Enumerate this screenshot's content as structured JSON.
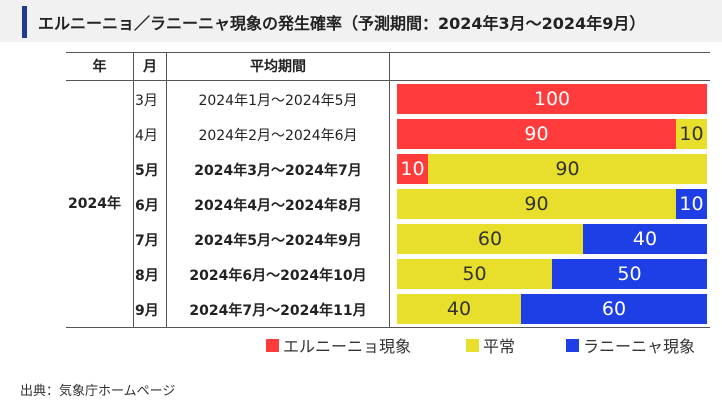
{
  "title": "エルニーニョ／ラニーニャ現象の発生確率（予測期間：2024年3月〜2024年9月）",
  "table_headers": {
    "year": "年",
    "month": "月",
    "period": "平均期間"
  },
  "year_label": "2024年",
  "colors": {
    "elnino": "#ff3b3b",
    "normal": "#e8df2c",
    "lanina": "#1f3fe6"
  },
  "chart_data": {
    "type": "bar",
    "stacked": true,
    "orientation": "horizontal",
    "title": "エルニーニョ／ラニーニャ現象の発生確率（予測期間：2024年3月〜2024年9月）",
    "categories": [
      "3月",
      "4月",
      "5月",
      "6月",
      "7月",
      "8月",
      "9月"
    ],
    "periods": [
      "2024年1月〜2024年5月",
      "2024年2月〜2024年6月",
      "2024年3月〜2024年7月",
      "2024年4月〜2024年8月",
      "2024年5月〜2024年9月",
      "2024年6月〜2024年10月",
      "2024年7月〜2024年11月"
    ],
    "bold_rows": [
      false,
      false,
      true,
      true,
      true,
      true,
      true
    ],
    "series": [
      {
        "name": "エルニーニョ現象",
        "values": [
          100,
          90,
          10,
          0,
          0,
          0,
          0
        ]
      },
      {
        "name": "平常",
        "values": [
          0,
          10,
          90,
          90,
          60,
          50,
          40
        ]
      },
      {
        "name": "ラニーニャ現象",
        "values": [
          0,
          0,
          0,
          10,
          40,
          50,
          60
        ]
      }
    ],
    "xlim": [
      0,
      100
    ],
    "legend_position": "bottom"
  },
  "source": "出典：気象庁ホームページ"
}
